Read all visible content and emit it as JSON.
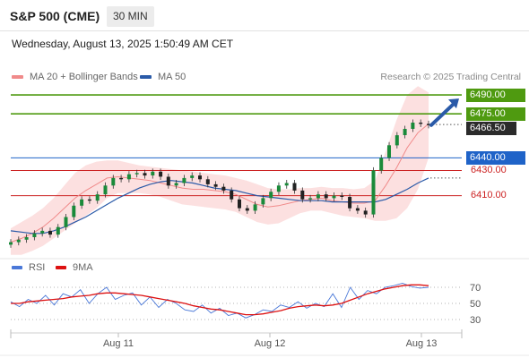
{
  "header": {
    "symbol": "S&P 500 (CME)",
    "interval": "30 MIN",
    "datetime": "Wednesday, August 13, 2025 1:50:49 AM CET"
  },
  "credit": "Research © 2025 Trading Central",
  "legend": {
    "price": [
      {
        "name": "MA 20 + Bollinger Bands",
        "color": "#f08a8a"
      },
      {
        "name": "MA 50",
        "color": "#2a5aa8"
      }
    ],
    "indicator": [
      {
        "name": "RSI",
        "color": "#4a78d8"
      },
      {
        "name": "9MA",
        "color": "#dd1111"
      }
    ]
  },
  "levels": [
    {
      "label": "6490.00",
      "value": 6490,
      "color": "#4f9a10",
      "kind": "resistance"
    },
    {
      "label": "6475.00",
      "value": 6475,
      "color": "#4f9a10",
      "kind": "resistance"
    },
    {
      "label": "6466.50",
      "value": 6466.5,
      "color": "#2b2b2b",
      "kind": "last-price"
    },
    {
      "label": "6440.00",
      "value": 6440,
      "color": "#1f63c8",
      "kind": "pivot"
    },
    {
      "label": "6430.00",
      "value": 6430,
      "color": "#cc2222",
      "kind": "support"
    },
    {
      "label": "6410.00",
      "value": 6410,
      "color": "#cc2222",
      "kind": "support"
    }
  ],
  "chart_data": [
    {
      "type": "line",
      "title": "",
      "x_ticks": [
        "Aug 11",
        "Aug 12",
        "Aug 13"
      ],
      "ylim": [
        6372,
        6500
      ],
      "grid": false,
      "legend_position": "top-left",
      "series": [
        {
          "name": "MA 20 + Bollinger Bands",
          "color": "#f08a8a",
          "values": [
            6373,
            6376,
            6380,
            6385,
            6392,
            6400,
            6408,
            6414,
            6419,
            6424,
            6425,
            6424,
            6423,
            6422,
            6420,
            6418,
            6416,
            6415,
            6415,
            6414,
            6413,
            6411,
            6407,
            6403,
            6401,
            6402,
            6404,
            6406,
            6407,
            6408,
            6406,
            6405,
            6404,
            6404,
            6406,
            6418,
            6432,
            6448,
            6460,
            6467
          ]
        },
        {
          "name": "MA 50",
          "color": "#2a5aa8",
          "values": [
            6382,
            6381,
            6380,
            6380,
            6382,
            6385,
            6389,
            6393,
            6398,
            6403,
            6408,
            6412,
            6416,
            6419,
            6421,
            6422,
            6421,
            6420,
            6418,
            6416,
            6415,
            6414,
            6412,
            6410,
            6409,
            6408,
            6407,
            6406,
            6406,
            6406,
            6405,
            6405,
            6405,
            6405,
            6405,
            6407,
            6411,
            6415,
            6420,
            6424
          ]
        }
      ],
      "bollinger_upper": [
        6384,
        6389,
        6394,
        6400,
        6408,
        6418,
        6428,
        6434,
        6437,
        6438,
        6438,
        6436,
        6434,
        6433,
        6432,
        6431,
        6430,
        6429,
        6428,
        6427,
        6426,
        6424,
        6422,
        6419,
        6416,
        6415,
        6415,
        6416,
        6416,
        6417,
        6416,
        6416,
        6415,
        6416,
        6422,
        6445,
        6470,
        6490,
        6497,
        6492
      ],
      "bollinger_lower": [
        6363,
        6363,
        6366,
        6370,
        6376,
        6382,
        6388,
        6394,
        6400,
        6408,
        6412,
        6412,
        6412,
        6411,
        6409,
        6406,
        6403,
        6402,
        6401,
        6400,
        6399,
        6397,
        6393,
        6389,
        6387,
        6388,
        6392,
        6396,
        6398,
        6398,
        6396,
        6394,
        6393,
        6392,
        6390,
        6390,
        6392,
        6400,
        6415,
        6440
      ],
      "price_close": [
        6373,
        6375,
        6377,
        6380,
        6382,
        6379,
        6385,
        6393,
        6402,
        6407,
        6406,
        6411,
        6418,
        6424,
        6423,
        6427,
        6428,
        6426,
        6429,
        6425,
        6418,
        6420,
        6424,
        6426,
        6423,
        6419,
        6417,
        6414,
        6407,
        6400,
        6398,
        6403,
        6408,
        6413,
        6418,
        6420,
        6414,
        6407,
        6408,
        6411,
        6408,
        6410,
        6409,
        6400,
        6398,
        6395,
        6430,
        6440,
        6450,
        6458,
        6463,
        6468,
        6467,
        6466
      ],
      "projection": {
        "direction": "up",
        "target": 6490
      }
    },
    {
      "type": "line",
      "title": "",
      "ylim": [
        20,
        80
      ],
      "y_ticks": [
        70,
        50,
        30
      ],
      "series": [
        {
          "name": "RSI",
          "color": "#4a78d8",
          "values": [
            52,
            46,
            55,
            50,
            60,
            48,
            62,
            58,
            67,
            50,
            62,
            70,
            55,
            60,
            63,
            48,
            58,
            45,
            55,
            50,
            42,
            40,
            48,
            38,
            44,
            35,
            38,
            32,
            36,
            42,
            40,
            48,
            45,
            52,
            44,
            50,
            46,
            62,
            45,
            70,
            55,
            66,
            62,
            70,
            72,
            75,
            71,
            69,
            70
          ]
        },
        {
          "name": "9MA",
          "color": "#dd1111",
          "values": [
            50,
            50,
            52,
            53,
            54,
            55,
            56,
            58,
            59,
            60,
            62,
            63,
            63,
            62,
            61,
            60,
            58,
            56,
            54,
            52,
            50,
            47,
            45,
            43,
            42,
            40,
            38,
            36,
            36,
            37,
            39,
            41,
            44,
            46,
            47,
            48,
            47,
            48,
            50,
            54,
            58,
            62,
            65,
            68,
            70,
            72,
            73,
            73,
            72
          ]
        }
      ]
    }
  ]
}
